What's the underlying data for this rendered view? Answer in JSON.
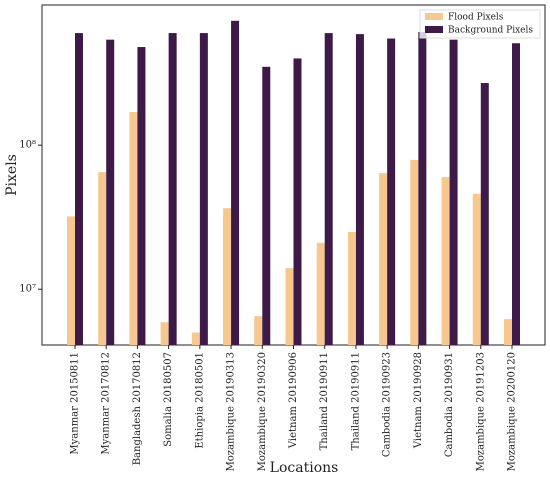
{
  "chart_data": {
    "type": "bar",
    "xlabel": "Locations",
    "ylabel": "Pixels",
    "categories": [
      "Myanmar 20150811",
      "Myanmar 20170812",
      "Bangladesh 20170812",
      "Somalia 20180507",
      "Ethiopia 20180501",
      "Mozambique 20190313",
      "Mozambique 20190320",
      "Vietnam 20190906",
      "Thailand 20190911",
      "Thailand 20190911",
      "Cambodia 20190923",
      "Vietnam 20190928",
      "Cambodia 20190931",
      "Mozambique 20191203",
      "Mozambique 20200120"
    ],
    "series": [
      {
        "name": "Flood Pixels",
        "color": "#f6c78e",
        "values": [
          32000000,
          65000000,
          170000000,
          5900000,
          5000000,
          36500000,
          6500000,
          14000000,
          21000000,
          25000000,
          64000000,
          79000000,
          60000000,
          46000000,
          6200000
        ]
      },
      {
        "name": "Background Pixels",
        "color": "#3d1a47",
        "values": [
          600000000,
          540000000,
          480000000,
          600000000,
          600000000,
          730000000,
          350000000,
          400000000,
          600000000,
          590000000,
          550000000,
          610000000,
          540000000,
          270000000,
          510000000
        ]
      }
    ],
    "ylim": [
      4100000,
      940000000
    ],
    "yscale": "log",
    "yticks": [
      {
        "value": 10000000,
        "label": "10⁷"
      },
      {
        "value": 100000000,
        "label": "10⁸"
      }
    ],
    "legend": "upper right"
  }
}
